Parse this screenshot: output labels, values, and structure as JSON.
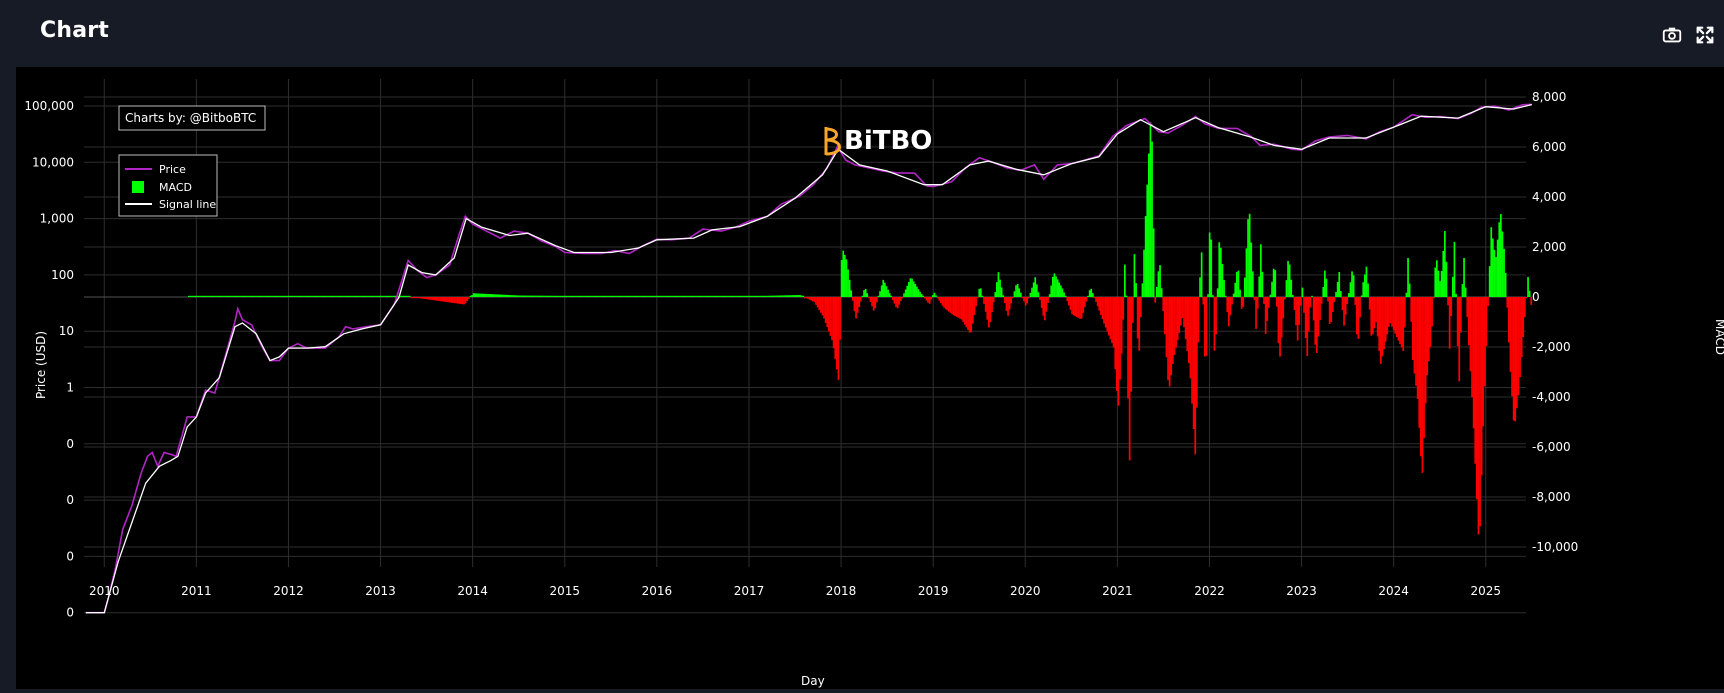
{
  "header": {
    "title": "Chart",
    "camera_icon": "camera-icon",
    "fullscreen_icon": "fullscreen-icon"
  },
  "credit": "Charts by: @BitboBTC",
  "watermark": "BiTBO",
  "colors": {
    "price": "#b026c4",
    "signal": "#ffffff",
    "macd_pos": "#00ff00",
    "macd_neg": "#ff0000",
    "background": "#000000",
    "header_bg": "#161b25",
    "grid": "#2e2e2e",
    "logo": "#f7a52b"
  },
  "chart_data": {
    "type": "line",
    "xlabel": "Day",
    "ylabel": "Price (USD)",
    "y2label": "MACD",
    "yscale": "log",
    "x_ticks": [
      "2010",
      "2011",
      "2012",
      "2013",
      "2014",
      "2015",
      "2016",
      "2017",
      "2018",
      "2019",
      "2020",
      "2021",
      "2022",
      "2023",
      "2024",
      "2025"
    ],
    "y_ticks": [
      "100,000",
      "10,000",
      "1,000",
      "100",
      "10",
      "1",
      "0",
      "0",
      "0",
      "0"
    ],
    "y2_ticks": [
      "8,000",
      "6,000",
      "4,000",
      "2,000",
      "0",
      "-2,000",
      "-4,000",
      "-6,000",
      "-8,000",
      "-10,000"
    ],
    "y2lim": [
      -10000,
      8000
    ],
    "legend": {
      "placement": "top-left",
      "entries": [
        "Price",
        "MACD",
        "Signal line"
      ]
    },
    "grid": true,
    "price_series": {
      "name": "Price",
      "points": [
        [
          2009.8,
          0.0001
        ],
        [
          2010.0,
          0.0001
        ],
        [
          2010.05,
          0.0002
        ],
        [
          2010.12,
          0.0006
        ],
        [
          2010.2,
          0.003
        ],
        [
          2010.3,
          0.008
        ],
        [
          2010.4,
          0.03
        ],
        [
          2010.47,
          0.06
        ],
        [
          2010.52,
          0.07
        ],
        [
          2010.58,
          0.04
        ],
        [
          2010.65,
          0.07
        ],
        [
          2010.72,
          0.065
        ],
        [
          2010.78,
          0.06
        ],
        [
          2010.85,
          0.15
        ],
        [
          2010.9,
          0.3
        ],
        [
          2011.0,
          0.3
        ],
        [
          2011.1,
          0.9
        ],
        [
          2011.2,
          0.8
        ],
        [
          2011.3,
          3
        ],
        [
          2011.42,
          15
        ],
        [
          2011.45,
          25
        ],
        [
          2011.5,
          16
        ],
        [
          2011.6,
          13
        ],
        [
          2011.72,
          5
        ],
        [
          2011.8,
          3
        ],
        [
          2011.9,
          3
        ],
        [
          2012.0,
          5
        ],
        [
          2012.1,
          6
        ],
        [
          2012.2,
          5
        ],
        [
          2012.4,
          5
        ],
        [
          2012.55,
          8
        ],
        [
          2012.62,
          12
        ],
        [
          2012.7,
          11
        ],
        [
          2012.85,
          12
        ],
        [
          2013.0,
          13
        ],
        [
          2013.15,
          30
        ],
        [
          2013.25,
          100
        ],
        [
          2013.3,
          180
        ],
        [
          2013.4,
          120
        ],
        [
          2013.5,
          90
        ],
        [
          2013.6,
          100
        ],
        [
          2013.75,
          150
        ],
        [
          2013.85,
          500
        ],
        [
          2013.92,
          1100
        ],
        [
          2014.0,
          800
        ],
        [
          2014.15,
          600
        ],
        [
          2014.3,
          450
        ],
        [
          2014.45,
          600
        ],
        [
          2014.6,
          550
        ],
        [
          2014.75,
          400
        ],
        [
          2014.9,
          320
        ],
        [
          2015.0,
          250
        ],
        [
          2015.2,
          240
        ],
        [
          2015.4,
          240
        ],
        [
          2015.55,
          270
        ],
        [
          2015.7,
          240
        ],
        [
          2015.85,
          330
        ],
        [
          2016.0,
          430
        ],
        [
          2016.15,
          420
        ],
        [
          2016.35,
          450
        ],
        [
          2016.5,
          650
        ],
        [
          2016.7,
          600
        ],
        [
          2016.85,
          700
        ],
        [
          2017.0,
          900
        ],
        [
          2017.2,
          1100
        ],
        [
          2017.35,
          1800
        ],
        [
          2017.55,
          2500
        ],
        [
          2017.7,
          4000
        ],
        [
          2017.85,
          8000
        ],
        [
          2017.96,
          19000
        ],
        [
          2018.05,
          11000
        ],
        [
          2018.15,
          9000
        ],
        [
          2018.3,
          8000
        ],
        [
          2018.45,
          7000
        ],
        [
          2018.6,
          6500
        ],
        [
          2018.8,
          6400
        ],
        [
          2018.93,
          3800
        ],
        [
          2019.0,
          3700
        ],
        [
          2019.2,
          4500
        ],
        [
          2019.35,
          8000
        ],
        [
          2019.5,
          12000
        ],
        [
          2019.65,
          10000
        ],
        [
          2019.8,
          8000
        ],
        [
          2019.95,
          7200
        ],
        [
          2020.1,
          9000
        ],
        [
          2020.2,
          5000
        ],
        [
          2020.35,
          9000
        ],
        [
          2020.5,
          9500
        ],
        [
          2020.65,
          11000
        ],
        [
          2020.8,
          13000
        ],
        [
          2020.95,
          29000
        ],
        [
          2021.1,
          45000
        ],
        [
          2021.3,
          60000
        ],
        [
          2021.45,
          35000
        ],
        [
          2021.55,
          33000
        ],
        [
          2021.7,
          45000
        ],
        [
          2021.85,
          65000
        ],
        [
          2021.95,
          48000
        ],
        [
          2022.1,
          40000
        ],
        [
          2022.3,
          40000
        ],
        [
          2022.45,
          29000
        ],
        [
          2022.55,
          20000
        ],
        [
          2022.7,
          21000
        ],
        [
          2022.9,
          17000
        ],
        [
          2023.0,
          16500
        ],
        [
          2023.15,
          24000
        ],
        [
          2023.3,
          28000
        ],
        [
          2023.5,
          30000
        ],
        [
          2023.7,
          26000
        ],
        [
          2023.85,
          35000
        ],
        [
          2024.0,
          42000
        ],
        [
          2024.2,
          70000
        ],
        [
          2024.35,
          63000
        ],
        [
          2024.5,
          65000
        ],
        [
          2024.7,
          60000
        ],
        [
          2024.85,
          75000
        ],
        [
          2024.95,
          95000
        ],
        [
          2025.1,
          100000
        ],
        [
          2025.25,
          85000
        ],
        [
          2025.4,
          105000
        ],
        [
          2025.5,
          107000
        ]
      ]
    },
    "signal_series": {
      "name": "Signal line",
      "points": [
        [
          2009.8,
          0.0001
        ],
        [
          2010.0,
          0.0001
        ],
        [
          2010.05,
          0.0002
        ],
        [
          2010.15,
          0.0008
        ],
        [
          2010.3,
          0.004
        ],
        [
          2010.45,
          0.02
        ],
        [
          2010.6,
          0.04
        ],
        [
          2010.72,
          0.05
        ],
        [
          2010.8,
          0.06
        ],
        [
          2010.9,
          0.2
        ],
        [
          2011.0,
          0.3
        ],
        [
          2011.1,
          0.8
        ],
        [
          2011.25,
          1.5
        ],
        [
          2011.42,
          12
        ],
        [
          2011.5,
          14
        ],
        [
          2011.65,
          9
        ],
        [
          2011.8,
          3
        ],
        [
          2011.9,
          3.5
        ],
        [
          2012.0,
          5
        ],
        [
          2012.2,
          5
        ],
        [
          2012.4,
          5.3
        ],
        [
          2012.6,
          9
        ],
        [
          2012.8,
          11
        ],
        [
          2013.0,
          13
        ],
        [
          2013.2,
          40
        ],
        [
          2013.3,
          150
        ],
        [
          2013.45,
          110
        ],
        [
          2013.6,
          100
        ],
        [
          2013.8,
          200
        ],
        [
          2013.93,
          1000
        ],
        [
          2014.1,
          700
        ],
        [
          2014.4,
          500
        ],
        [
          2014.6,
          550
        ],
        [
          2014.9,
          330
        ],
        [
          2015.1,
          250
        ],
        [
          2015.5,
          250
        ],
        [
          2015.8,
          300
        ],
        [
          2016.0,
          420
        ],
        [
          2016.4,
          450
        ],
        [
          2016.6,
          630
        ],
        [
          2016.9,
          720
        ],
        [
          2017.2,
          1100
        ],
        [
          2017.5,
          2300
        ],
        [
          2017.8,
          6000
        ],
        [
          2017.97,
          17000
        ],
        [
          2018.2,
          9000
        ],
        [
          2018.5,
          7000
        ],
        [
          2018.9,
          4000
        ],
        [
          2019.1,
          4000
        ],
        [
          2019.4,
          9000
        ],
        [
          2019.6,
          10500
        ],
        [
          2019.9,
          7500
        ],
        [
          2020.2,
          6000
        ],
        [
          2020.5,
          9400
        ],
        [
          2020.8,
          12500
        ],
        [
          2021.0,
          32000
        ],
        [
          2021.25,
          57000
        ],
        [
          2021.5,
          35000
        ],
        [
          2021.85,
          62000
        ],
        [
          2022.1,
          41000
        ],
        [
          2022.45,
          28000
        ],
        [
          2022.7,
          20000
        ],
        [
          2023.0,
          17000
        ],
        [
          2023.3,
          27000
        ],
        [
          2023.7,
          27000
        ],
        [
          2024.0,
          42000
        ],
        [
          2024.3,
          66000
        ],
        [
          2024.7,
          61000
        ],
        [
          2025.0,
          97000
        ],
        [
          2025.3,
          88000
        ],
        [
          2025.5,
          106000
        ]
      ]
    },
    "macd_series": {
      "name": "MACD",
      "points": [
        [
          2010.9,
          0
        ],
        [
          2013.3,
          10
        ],
        [
          2013.9,
          -300
        ],
        [
          2014.0,
          150
        ],
        [
          2014.5,
          60
        ],
        [
          2015.5,
          30
        ],
        [
          2016.5,
          40
        ],
        [
          2017.2,
          50
        ],
        [
          2017.55,
          80
        ],
        [
          2017.7,
          -200
        ],
        [
          2017.8,
          -800
        ],
        [
          2017.9,
          -1800
        ],
        [
          2017.97,
          -3500
        ],
        [
          2018.0,
          2000
        ],
        [
          2018.05,
          1500
        ],
        [
          2018.15,
          -900
        ],
        [
          2018.25,
          400
        ],
        [
          2018.35,
          -600
        ],
        [
          2018.45,
          700
        ],
        [
          2018.6,
          -500
        ],
        [
          2018.75,
          800
        ],
        [
          2018.85,
          200
        ],
        [
          2018.95,
          -300
        ],
        [
          2019.0,
          200
        ],
        [
          2019.1,
          -400
        ],
        [
          2019.2,
          -700
        ],
        [
          2019.3,
          -900
        ],
        [
          2019.4,
          -1500
        ],
        [
          2019.5,
          500
        ],
        [
          2019.6,
          -1300
        ],
        [
          2019.7,
          1000
        ],
        [
          2019.8,
          -800
        ],
        [
          2019.9,
          600
        ],
        [
          2020.0,
          -400
        ],
        [
          2020.1,
          800
        ],
        [
          2020.2,
          -1000
        ],
        [
          2020.3,
          1000
        ],
        [
          2020.4,
          300
        ],
        [
          2020.5,
          -700
        ],
        [
          2020.6,
          -900
        ],
        [
          2020.7,
          400
        ],
        [
          2020.85,
          -1100
        ],
        [
          2020.95,
          -2000
        ],
        [
          2021.0,
          -4500
        ],
        [
          2021.05,
          -1500
        ],
        [
          2021.08,
          2300
        ],
        [
          2021.12,
          -7200
        ],
        [
          2021.18,
          2300
        ],
        [
          2021.22,
          -2800
        ],
        [
          2021.3,
          3400
        ],
        [
          2021.36,
          7700
        ],
        [
          2021.4,
          -300
        ],
        [
          2021.45,
          1500
        ],
        [
          2021.55,
          -3800
        ],
        [
          2021.6,
          -2500
        ],
        [
          2021.7,
          -800
        ],
        [
          2021.78,
          -3000
        ],
        [
          2021.84,
          -6500
        ],
        [
          2021.9,
          2500
        ],
        [
          2021.95,
          -3500
        ],
        [
          2022.0,
          3600
        ],
        [
          2022.05,
          -2800
        ],
        [
          2022.1,
          2500
        ],
        [
          2022.2,
          -1200
        ],
        [
          2022.3,
          1300
        ],
        [
          2022.35,
          -900
        ],
        [
          2022.42,
          3800
        ],
        [
          2022.5,
          -1500
        ],
        [
          2022.55,
          2200
        ],
        [
          2022.6,
          -1500
        ],
        [
          2022.7,
          1500
        ],
        [
          2022.75,
          -2700
        ],
        [
          2022.85,
          1700
        ],
        [
          2022.95,
          -1800
        ],
        [
          2023.0,
          400
        ],
        [
          2023.05,
          -2500
        ],
        [
          2023.1,
          300
        ],
        [
          2023.15,
          -2500
        ],
        [
          2023.25,
          1300
        ],
        [
          2023.3,
          -1300
        ],
        [
          2023.4,
          1000
        ],
        [
          2023.45,
          -1200
        ],
        [
          2023.55,
          1300
        ],
        [
          2023.6,
          -2100
        ],
        [
          2023.65,
          400
        ],
        [
          2023.7,
          1300
        ],
        [
          2023.75,
          -1700
        ],
        [
          2023.8,
          -1000
        ],
        [
          2023.85,
          -2700
        ],
        [
          2023.95,
          -1000
        ],
        [
          2024.0,
          -1400
        ],
        [
          2024.1,
          -2200
        ],
        [
          2024.15,
          1800
        ],
        [
          2024.2,
          -2600
        ],
        [
          2024.25,
          -4000
        ],
        [
          2024.3,
          -7300
        ],
        [
          2024.35,
          -3300
        ],
        [
          2024.4,
          -1700
        ],
        [
          2024.45,
          1700
        ],
        [
          2024.5,
          500
        ],
        [
          2024.55,
          2800
        ],
        [
          2024.6,
          -2200
        ],
        [
          2024.65,
          2300
        ],
        [
          2024.7,
          -3700
        ],
        [
          2024.75,
          1900
        ],
        [
          2024.8,
          -1500
        ],
        [
          2024.85,
          -4500
        ],
        [
          2024.92,
          -10200
        ],
        [
          2024.96,
          -5500
        ],
        [
          2025.0,
          -1800
        ],
        [
          2025.05,
          2800
        ],
        [
          2025.1,
          1500
        ],
        [
          2025.15,
          3500
        ],
        [
          2025.2,
          1500
        ],
        [
          2025.25,
          -2500
        ],
        [
          2025.3,
          -5300
        ],
        [
          2025.35,
          -3800
        ],
        [
          2025.4,
          -1500
        ],
        [
          2025.45,
          800
        ],
        [
          2025.5,
          -800
        ]
      ]
    }
  }
}
